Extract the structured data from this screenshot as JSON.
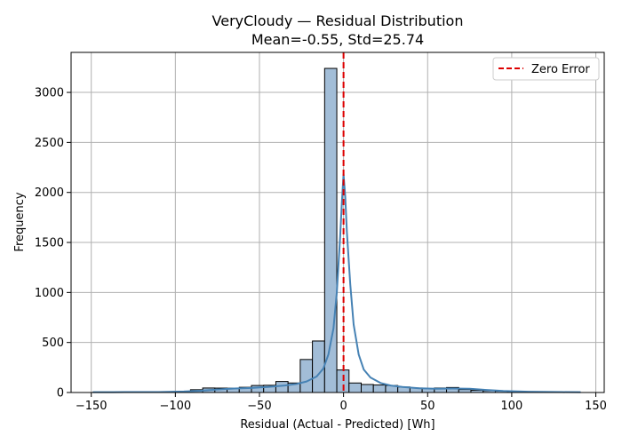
{
  "chart_data": {
    "type": "bar",
    "title_line1": "VeryCloudy — Residual Distribution",
    "title_line2": "Mean=-0.55, Std=25.74",
    "xlabel": "Residual (Actual - Predicted) [Wh]",
    "ylabel": "Frequency",
    "xlim": [
      -162,
      155
    ],
    "ylim": [
      0,
      3400
    ],
    "xticks": [
      -150,
      -100,
      -50,
      0,
      50,
      100,
      150
    ],
    "xtick_labels": [
      "−150",
      "−100",
      "−50",
      "0",
      "50",
      "100",
      "150"
    ],
    "yticks": [
      0,
      500,
      1000,
      1500,
      2000,
      2500,
      3000
    ],
    "ytick_labels": [
      "0",
      "500",
      "1000",
      "1500",
      "2000",
      "2500",
      "3000"
    ],
    "grid": true,
    "legend": {
      "position": "top-right",
      "entries": [
        "Zero Error"
      ]
    },
    "zero_line_x": 0,
    "bin_start": -149,
    "bin_width": 7.25,
    "bin_counts": [
      3,
      3,
      4,
      2,
      4,
      4,
      5,
      8,
      28,
      45,
      44,
      43,
      52,
      70,
      72,
      110,
      95,
      330,
      515,
      3240,
      225,
      95,
      80,
      75,
      70,
      55,
      45,
      40,
      45,
      50,
      30,
      22,
      18,
      14,
      8,
      6,
      4,
      4,
      4
    ],
    "kde": {
      "x": [
        -149,
        -130,
        -110,
        -95,
        -85,
        -75,
        -65,
        -55,
        -45,
        -35,
        -28,
        -22,
        -16,
        -12,
        -9,
        -6,
        -4,
        -2,
        -1,
        0,
        1,
        2,
        4,
        6,
        9,
        12,
        16,
        22,
        28,
        35,
        45,
        55,
        65,
        75,
        85,
        95,
        110,
        130,
        141
      ],
      "y": [
        3,
        4,
        5,
        10,
        18,
        30,
        40,
        45,
        55,
        70,
        85,
        110,
        160,
        240,
        380,
        640,
        1000,
        1560,
        1900,
        2180,
        1960,
        1600,
        1080,
        680,
        380,
        230,
        150,
        95,
        70,
        55,
        42,
        38,
        40,
        38,
        25,
        15,
        8,
        4,
        3
      ]
    },
    "colors": {
      "bar_fill": "#a2bdd7",
      "bar_edge": "#000000",
      "kde_line": "#4682b4",
      "zero_line": "#dd0000",
      "grid": "#b0b0b0"
    }
  }
}
